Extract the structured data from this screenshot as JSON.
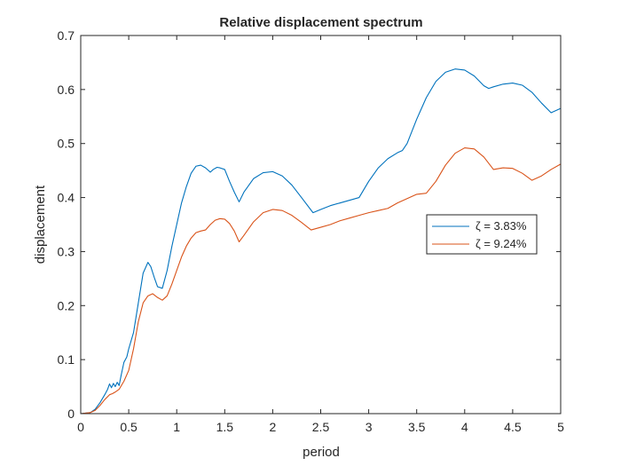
{
  "chart_data": {
    "type": "line",
    "title": "Relative displacement spectrum",
    "xlabel": "period",
    "ylabel": "displacement",
    "xlim": [
      0,
      5
    ],
    "ylim": [
      0,
      0.7
    ],
    "xticks": [
      0,
      0.5,
      1,
      1.5,
      2,
      2.5,
      3,
      3.5,
      4,
      4.5,
      5
    ],
    "xtick_labels": [
      "0",
      "0.5",
      "1",
      "1.5",
      "2",
      "2.5",
      "3",
      "3.5",
      "4",
      "4.5",
      "5"
    ],
    "yticks": [
      0,
      0.1,
      0.2,
      0.3,
      0.4,
      0.5,
      0.6,
      0.7
    ],
    "ytick_labels": [
      "0",
      "0.1",
      "0.2",
      "0.3",
      "0.4",
      "0.5",
      "0.6",
      "0.7"
    ],
    "grid": false,
    "legend_position": "right",
    "series": [
      {
        "name": "ζ = 3.83%",
        "color": "#0072BD",
        "x": [
          0,
          0.1,
          0.15,
          0.2,
          0.25,
          0.28,
          0.3,
          0.32,
          0.34,
          0.36,
          0.38,
          0.4,
          0.42,
          0.45,
          0.48,
          0.5,
          0.55,
          0.6,
          0.65,
          0.7,
          0.73,
          0.77,
          0.8,
          0.85,
          0.9,
          0.95,
          1.0,
          1.05,
          1.1,
          1.15,
          1.2,
          1.25,
          1.3,
          1.35,
          1.38,
          1.42,
          1.45,
          1.5,
          1.55,
          1.6,
          1.65,
          1.7,
          1.8,
          1.9,
          2.0,
          2.1,
          2.2,
          2.3,
          2.42,
          2.5,
          2.6,
          2.7,
          2.9,
          3.0,
          3.1,
          3.2,
          3.3,
          3.35,
          3.4,
          3.5,
          3.6,
          3.7,
          3.8,
          3.9,
          4.0,
          4.1,
          4.2,
          4.25,
          4.3,
          4.4,
          4.5,
          4.6,
          4.7,
          4.8,
          4.9,
          5.0
        ],
        "y": [
          0,
          0.002,
          0.008,
          0.02,
          0.035,
          0.045,
          0.055,
          0.048,
          0.056,
          0.05,
          0.058,
          0.052,
          0.07,
          0.095,
          0.105,
          0.12,
          0.15,
          0.205,
          0.26,
          0.28,
          0.272,
          0.25,
          0.235,
          0.232,
          0.265,
          0.31,
          0.35,
          0.39,
          0.42,
          0.445,
          0.458,
          0.46,
          0.455,
          0.447,
          0.452,
          0.456,
          0.455,
          0.452,
          0.43,
          0.41,
          0.392,
          0.41,
          0.435,
          0.446,
          0.448,
          0.44,
          0.423,
          0.4,
          0.372,
          0.378,
          0.385,
          0.39,
          0.4,
          0.43,
          0.455,
          0.472,
          0.483,
          0.487,
          0.5,
          0.545,
          0.585,
          0.615,
          0.632,
          0.638,
          0.636,
          0.625,
          0.607,
          0.602,
          0.605,
          0.61,
          0.612,
          0.608,
          0.595,
          0.575,
          0.557,
          0.565
        ]
      },
      {
        "name": "ζ = 9.24%",
        "color": "#D95319",
        "x": [
          0,
          0.1,
          0.15,
          0.2,
          0.25,
          0.3,
          0.33,
          0.36,
          0.4,
          0.45,
          0.5,
          0.55,
          0.6,
          0.65,
          0.7,
          0.75,
          0.8,
          0.85,
          0.9,
          0.95,
          1.0,
          1.05,
          1.1,
          1.15,
          1.2,
          1.25,
          1.3,
          1.35,
          1.4,
          1.45,
          1.5,
          1.55,
          1.6,
          1.65,
          1.7,
          1.8,
          1.9,
          2.0,
          2.1,
          2.2,
          2.3,
          2.4,
          2.5,
          2.6,
          2.7,
          2.8,
          2.9,
          3.0,
          3.1,
          3.2,
          3.3,
          3.4,
          3.5,
          3.6,
          3.7,
          3.8,
          3.9,
          4.0,
          4.1,
          4.2,
          4.3,
          4.4,
          4.5,
          4.6,
          4.7,
          4.8,
          4.9,
          5.0
        ],
        "y": [
          0,
          0.002,
          0.006,
          0.015,
          0.026,
          0.035,
          0.037,
          0.04,
          0.045,
          0.06,
          0.08,
          0.12,
          0.17,
          0.205,
          0.218,
          0.222,
          0.215,
          0.21,
          0.218,
          0.24,
          0.265,
          0.29,
          0.31,
          0.325,
          0.335,
          0.338,
          0.34,
          0.35,
          0.358,
          0.361,
          0.36,
          0.352,
          0.338,
          0.318,
          0.33,
          0.355,
          0.372,
          0.378,
          0.376,
          0.367,
          0.354,
          0.34,
          0.345,
          0.35,
          0.357,
          0.362,
          0.367,
          0.372,
          0.376,
          0.38,
          0.39,
          0.398,
          0.406,
          0.408,
          0.43,
          0.46,
          0.482,
          0.492,
          0.49,
          0.475,
          0.452,
          0.455,
          0.454,
          0.445,
          0.432,
          0.44,
          0.452,
          0.462
        ]
      }
    ]
  }
}
